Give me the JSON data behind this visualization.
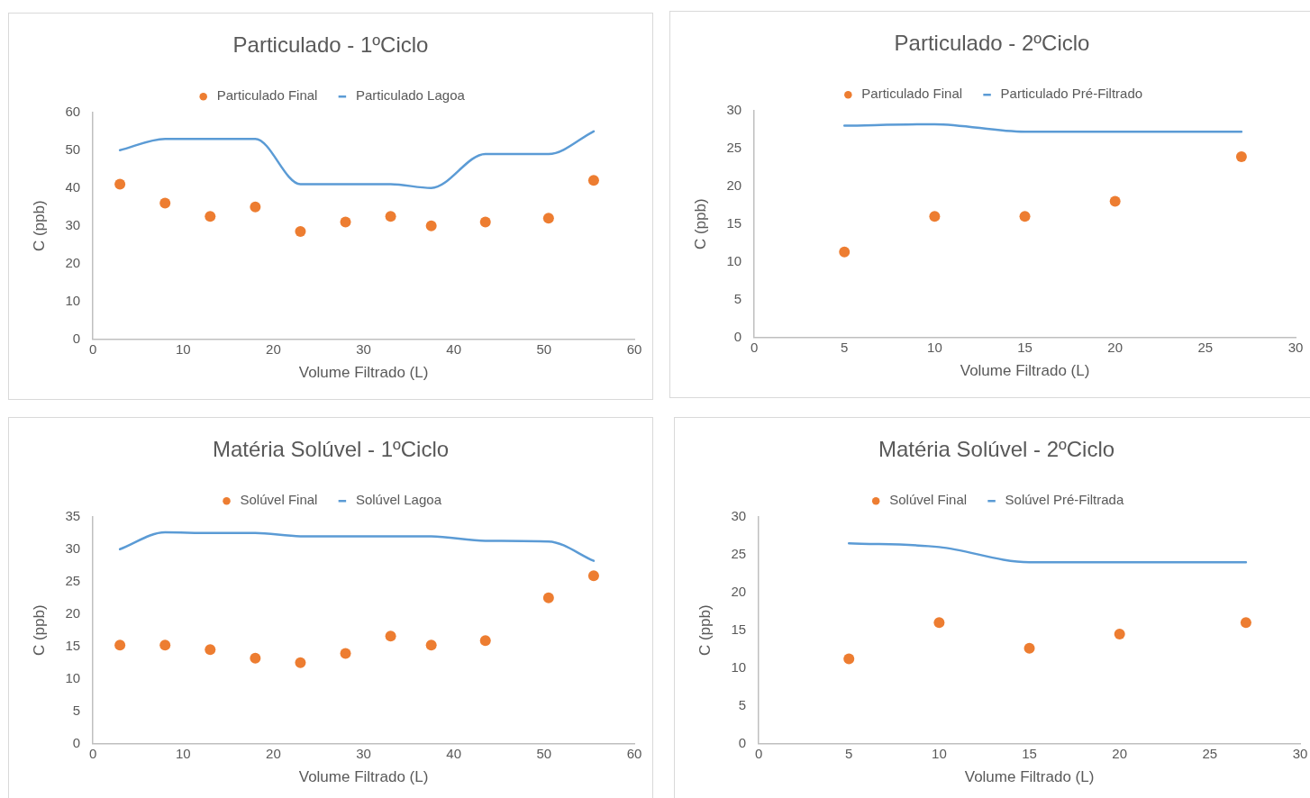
{
  "chart_data": [
    {
      "type": "scatter",
      "title": "Particulado - 1ºCiclo",
      "xlabel": "Volume Filtrado (L)",
      "ylabel": "C (ppb)",
      "legend": "top",
      "grid": false,
      "xlim": [
        0,
        60
      ],
      "xticks": [
        0,
        10,
        20,
        30,
        40,
        50,
        60
      ],
      "ylim": [
        0,
        60
      ],
      "yticks": [
        0,
        10,
        20,
        30,
        40,
        50,
        60
      ],
      "series": [
        {
          "name": "Particulado Final",
          "type": "scatter",
          "color": "#ed7d31",
          "x": [
            3,
            8,
            13,
            18,
            23,
            28,
            33,
            37.5,
            43.5,
            50.5,
            55.5
          ],
          "values": [
            41,
            36,
            32.5,
            35,
            28.5,
            31,
            32.5,
            30,
            31,
            32,
            42
          ]
        },
        {
          "name": "Particulado Lagoa",
          "type": "line",
          "color": "#5b9bd5",
          "x": [
            3,
            8,
            13,
            18,
            23,
            28,
            33,
            37.5,
            43.5,
            50.5,
            55.5
          ],
          "values": [
            50,
            53,
            53,
            53,
            41,
            41,
            41,
            40,
            49,
            49,
            55
          ]
        }
      ]
    },
    {
      "type": "scatter",
      "title": "Particulado - 2ºCiclo",
      "xlabel": "Volume Filtrado (L)",
      "ylabel": "C (ppb)",
      "legend": "top",
      "grid": false,
      "xlim": [
        0,
        30
      ],
      "xticks": [
        0,
        5,
        10,
        15,
        20,
        25,
        30
      ],
      "ylim": [
        0,
        30
      ],
      "yticks": [
        0,
        5,
        10,
        15,
        20,
        25,
        30
      ],
      "series": [
        {
          "name": "Particulado Final",
          "type": "scatter",
          "color": "#ed7d31",
          "x": [
            5,
            10,
            15,
            20,
            27
          ],
          "values": [
            11.3,
            16,
            16,
            18,
            23.9
          ]
        },
        {
          "name": "Particulado Pré-Filtrado",
          "type": "line",
          "color": "#5b9bd5",
          "x": [
            5,
            10,
            15,
            20,
            27
          ],
          "values": [
            28,
            28.2,
            27.2,
            27.2,
            27.2
          ]
        }
      ]
    },
    {
      "type": "scatter",
      "title": "Matéria Solúvel - 1ºCiclo",
      "xlabel": "Volume Filtrado (L)",
      "ylabel": "C (ppb)",
      "legend": "top",
      "grid": false,
      "xlim": [
        0,
        60
      ],
      "xticks": [
        0,
        10,
        20,
        30,
        40,
        50,
        60
      ],
      "ylim": [
        0,
        35
      ],
      "yticks": [
        0,
        5,
        10,
        15,
        20,
        25,
        30,
        35
      ],
      "series": [
        {
          "name": "Solúvel Final",
          "type": "scatter",
          "color": "#ed7d31",
          "x": [
            3,
            8,
            13,
            18,
            23,
            28,
            33,
            37.5,
            43.5,
            50.5,
            55.5
          ],
          "values": [
            15.2,
            15.2,
            14.5,
            13.2,
            12.5,
            13.9,
            16.6,
            15.2,
            15.9,
            22.5,
            25.9
          ]
        },
        {
          "name": "Solúvel Lagoa",
          "type": "line",
          "color": "#5b9bd5",
          "x": [
            3,
            8,
            13,
            18,
            23,
            28,
            33,
            37.5,
            43.5,
            50.5,
            55.5
          ],
          "values": [
            30,
            32.6,
            32.5,
            32.5,
            32,
            32,
            32,
            32,
            31.3,
            31.2,
            28.2
          ]
        }
      ]
    },
    {
      "type": "scatter",
      "title": "Matéria Solúvel - 2ºCiclo",
      "xlabel": "Volume Filtrado (L)",
      "ylabel": "C (ppb)",
      "legend": "top",
      "grid": false,
      "xlim": [
        0,
        30
      ],
      "xticks": [
        0,
        5,
        10,
        15,
        20,
        25,
        30
      ],
      "ylim": [
        0,
        30
      ],
      "yticks": [
        0,
        5,
        10,
        15,
        20,
        25,
        30
      ],
      "series": [
        {
          "name": "Solúvel Final",
          "type": "scatter",
          "color": "#ed7d31",
          "x": [
            5,
            10,
            15,
            20,
            27
          ],
          "values": [
            11.2,
            16,
            12.6,
            14.5,
            16
          ]
        },
        {
          "name": "Solúvel Pré-Filtrada",
          "type": "line",
          "color": "#5b9bd5",
          "x": [
            5,
            10,
            15,
            20,
            27
          ],
          "values": [
            26.5,
            26,
            24,
            24,
            24
          ]
        }
      ]
    }
  ]
}
